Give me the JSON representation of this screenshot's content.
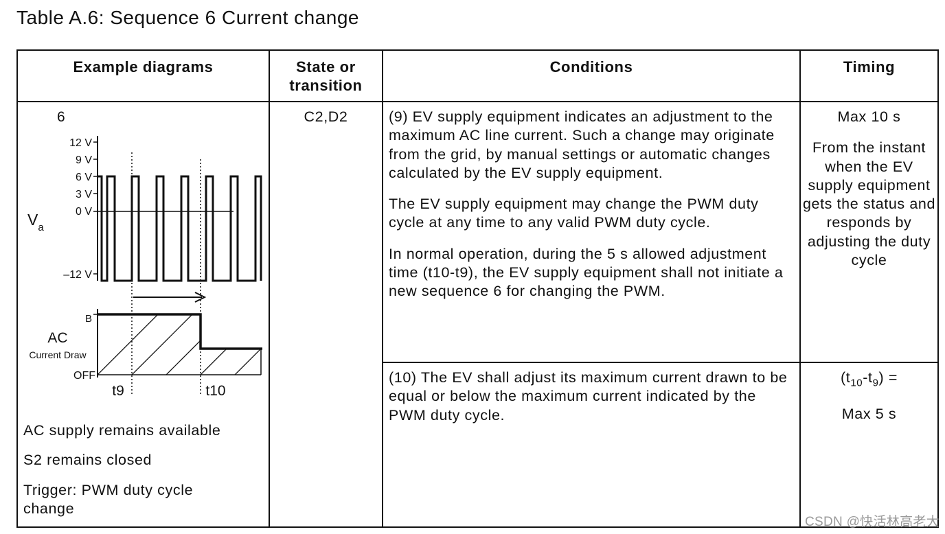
{
  "title": "Table A.6: Sequence 6 Current change",
  "headers": {
    "example": "Example diagrams",
    "state_line1": "State or",
    "state_line2": "transition",
    "conditions": "Conditions",
    "timing": "Timing"
  },
  "row1": {
    "diagram_number": "6",
    "state": "C2,D2",
    "conditions": [
      "(9) EV supply equipment indicates an adjustment to the maximum AC line current. Such a change may originate from the grid, by manual settings or automatic changes calculated by the EV supply equipment.",
      "The EV supply equipment may change the PWM duty cycle at any time to any valid PWM duty cycle.",
      "In normal operation, during the 5 s allowed adjustment time (t10-t9), the EV supply equipment shall not initiate a new sequence 6 for changing the PWM."
    ],
    "timing": [
      "Max 10 s",
      "From the instant when the EV supply equipment gets the status and responds by adjusting the duty cycle"
    ]
  },
  "row2": {
    "conditions": "(10) The EV shall adjust its maximum current drawn to be equal or below the maximum current indicated by the PWM duty cycle.",
    "timing_formula_prefix": "(t",
    "timing_sub1": "10",
    "timing_mid": "-t",
    "timing_sub2": "9",
    "timing_suffix": ") =",
    "timing_max": "Max 5 s"
  },
  "diagram": {
    "y_ticks": [
      "12 V",
      "9 V",
      "6 V",
      "3 V",
      "0 V",
      "–12 V"
    ],
    "va_label": "V",
    "va_sub": "a",
    "ac_label": "AC",
    "current_draw_label": "Current Draw",
    "b_label": "B",
    "off_label": "OFF",
    "t9_label": "t9",
    "t10_label": "t10"
  },
  "notes": {
    "ac_supply": "AC supply remains available",
    "s2": "S2 remains closed",
    "trigger_line1": "Trigger: PWM duty cycle",
    "trigger_line2": "change"
  },
  "watermark": "CSDN @快活林高老大"
}
